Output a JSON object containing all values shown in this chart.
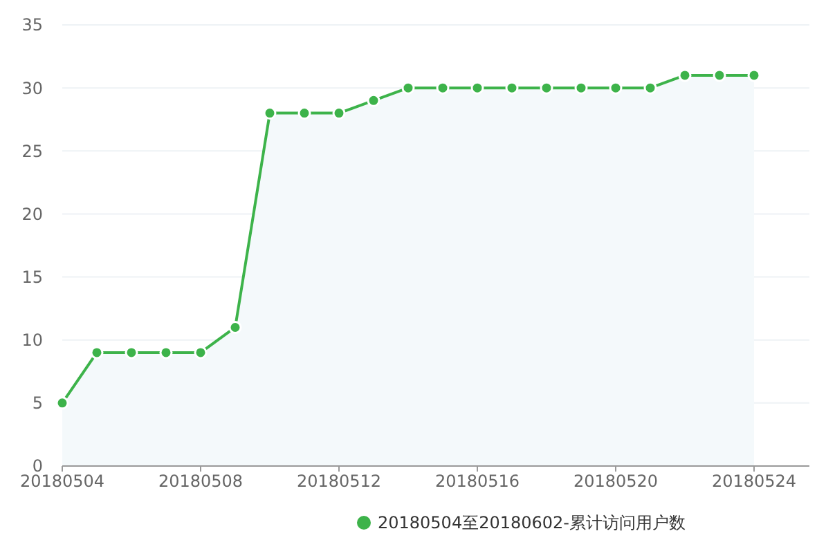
{
  "chart_data": {
    "type": "area",
    "categories": [
      "20180504",
      null,
      null,
      null,
      "20180508",
      null,
      null,
      null,
      "20180512",
      null,
      null,
      null,
      "20180516",
      null,
      null,
      null,
      "20180520",
      null,
      null,
      null,
      "20180524"
    ],
    "series": [
      {
        "name": "20180504至20180602-累计访问用户数",
        "color": "#3db34a",
        "values": [
          5,
          9,
          9,
          9,
          9,
          11,
          28,
          28,
          28,
          29,
          30,
          30,
          30,
          30,
          30,
          30,
          30,
          30,
          31,
          31,
          31
        ]
      }
    ],
    "ylim": [
      0,
      35
    ],
    "yticks": [
      0,
      5,
      10,
      15,
      20,
      25,
      30,
      35
    ],
    "grid": "y",
    "legend": "bottom",
    "marker": "circle",
    "line_style": "solid"
  }
}
